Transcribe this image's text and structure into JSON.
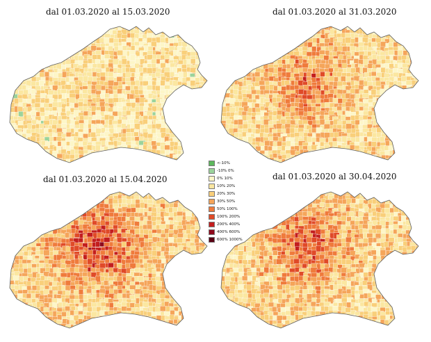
{
  "panels": [
    {
      "title": "dal 01.03.2020 al 15.03.2020",
      "intensity": 0.18
    },
    {
      "title": "dal 01.03.2020 al 31.03.2020",
      "intensity": 0.48
    },
    {
      "title": "dal 01.03.2020 al 15.04.2020",
      "intensity": 0.66
    },
    {
      "title": "dal 01.03.2020 al 30.04.2020",
      "intensity": 0.56
    }
  ],
  "legend": {
    "items": [
      {
        "label": "<-10%",
        "color": "#5cb85c"
      },
      {
        "label": "-10%   0%",
        "color": "#9bd39b"
      },
      {
        "label": "0%   10%",
        "color": "#fdf6c8"
      },
      {
        "label": "10%   20%",
        "color": "#fbe7a1"
      },
      {
        "label": "20%   30%",
        "color": "#f9cf7a"
      },
      {
        "label": "30%   50%",
        "color": "#f5a55a"
      },
      {
        "label": "50%   100%",
        "color": "#ef7b3c"
      },
      {
        "label": "100%   200%",
        "color": "#e04a28"
      },
      {
        "label": "200%   400%",
        "color": "#c31e1e"
      },
      {
        "label": "400%   600%",
        "color": "#8f0a1c"
      },
      {
        "label": "600%   1000%",
        "color": "#5a0014"
      }
    ]
  }
}
